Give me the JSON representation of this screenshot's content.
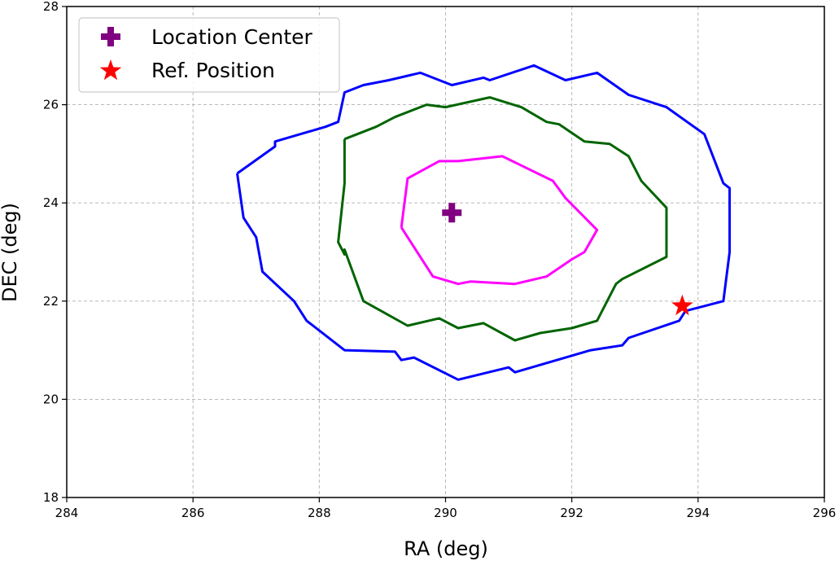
{
  "chart_data": {
    "type": "line",
    "xlabel": "RA (deg)",
    "ylabel": "DEC (deg)",
    "xlim": [
      284,
      296
    ],
    "ylim": [
      18,
      28
    ],
    "xticks": [
      "284",
      "286",
      "288",
      "290",
      "292",
      "294",
      "296"
    ],
    "yticks": [
      "18",
      "20",
      "22",
      "24",
      "26",
      "28"
    ],
    "grid": true,
    "legend_position": "top-left",
    "legend": [
      {
        "label": "Location Center",
        "marker": "plus",
        "color": "#800080"
      },
      {
        "label": "Ref. Position",
        "marker": "star",
        "color": "#ff0000"
      }
    ],
    "points": {
      "location_center": {
        "x": 290.1,
        "y": 23.8,
        "color": "#800080"
      },
      "ref_position": {
        "x": 293.75,
        "y": 21.9,
        "color": "#ff0000"
      }
    },
    "series": [
      {
        "color": "#0000ff",
        "x": [
          286.7,
          286.8,
          287.0,
          287.1,
          287.6,
          287.8,
          288.4,
          289.2,
          289.3,
          289.5,
          290.2,
          291.0,
          291.1,
          292.3,
          292.8,
          292.9,
          293.7,
          293.8,
          294.4,
          294.5,
          294.5,
          294.5,
          294.4,
          294.1,
          293.5,
          292.9,
          292.4,
          291.9,
          291.4,
          290.7,
          290.6,
          290.1,
          289.6,
          289.1,
          288.7,
          288.4,
          288.3,
          288.1,
          287.3,
          287.3,
          286.7
        ],
        "y": [
          24.6,
          23.7,
          23.3,
          22.6,
          22.0,
          21.6,
          21.0,
          20.97,
          20.8,
          20.85,
          20.4,
          20.65,
          20.55,
          21.0,
          21.1,
          21.25,
          21.6,
          21.8,
          22.0,
          23.0,
          23.1,
          24.3,
          24.4,
          25.4,
          25.95,
          26.2,
          26.65,
          26.5,
          26.8,
          26.5,
          26.55,
          26.4,
          26.65,
          26.5,
          26.4,
          26.25,
          25.65,
          25.55,
          25.25,
          25.15,
          24.6
        ]
      },
      {
        "color": "#006400",
        "x": [
          288.4,
          288.4,
          288.3,
          288.4,
          288.4,
          288.7,
          289.4,
          289.9,
          290.2,
          290.6,
          291.1,
          291.5,
          292.0,
          292.4,
          292.7,
          292.8,
          293.5,
          293.5,
          293.1,
          292.9,
          292.6,
          292.2,
          291.8,
          291.6,
          291.2,
          290.7,
          290.0,
          289.7,
          289.2,
          288.9,
          288.4
        ],
        "y": [
          25.3,
          24.4,
          23.2,
          22.95,
          23.05,
          22.0,
          21.5,
          21.65,
          21.45,
          21.55,
          21.2,
          21.35,
          21.45,
          21.6,
          22.35,
          22.45,
          22.9,
          23.9,
          24.45,
          24.95,
          25.2,
          25.25,
          25.6,
          25.65,
          25.95,
          26.15,
          25.95,
          26.0,
          25.75,
          25.55,
          25.3
        ]
      },
      {
        "color": "#ff00ff",
        "x": [
          289.3,
          289.4,
          289.9,
          290.2,
          290.9,
          291.7,
          291.9,
          292.4,
          292.2,
          292.0,
          291.6,
          291.1,
          290.4,
          290.2,
          289.8,
          289.3
        ],
        "y": [
          23.5,
          24.5,
          24.85,
          24.85,
          24.95,
          24.45,
          24.1,
          23.45,
          23.0,
          22.85,
          22.5,
          22.35,
          22.4,
          22.35,
          22.5,
          23.5
        ]
      }
    ]
  }
}
